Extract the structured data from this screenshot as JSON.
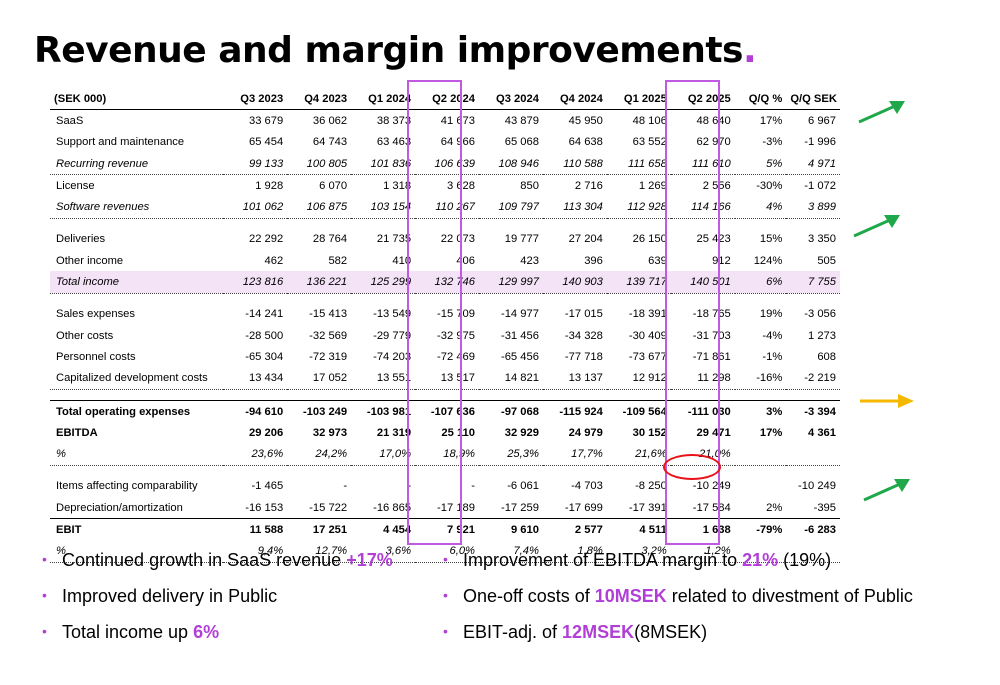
{
  "title": "Revenue and margin improvements",
  "title_dot": ".",
  "table": {
    "columns": [
      "(SEK 000)",
      "Q3 2023",
      "Q4 2023",
      "Q1 2024",
      "Q2 2024",
      "Q3 2024",
      "Q4 2024",
      "Q1 2025",
      "Q2 2025",
      "Q/Q %",
      "Q/Q SEK"
    ],
    "rows": [
      [
        "SaaS",
        "33 679",
        "36 062",
        "38 373",
        "41 673",
        "43 879",
        "45 950",
        "48 106",
        "48 640",
        "17%",
        "6 967"
      ],
      [
        "Support and maintenance",
        "65 454",
        "64 743",
        "63 463",
        "64 966",
        "65 068",
        "64 638",
        "63 552",
        "62 970",
        "-3%",
        "-1 996"
      ],
      [
        "Recurring revenue",
        "99 133",
        "100 805",
        "101 836",
        "106 639",
        "108 946",
        "110 588",
        "111 658",
        "111 610",
        "5%",
        "4 971"
      ],
      [
        "License",
        "1 928",
        "6 070",
        "1 318",
        "3 628",
        "850",
        "2 716",
        "1 269",
        "2 556",
        "-30%",
        "-1 072"
      ],
      [
        "Software revenues",
        "101 062",
        "106 875",
        "103 154",
        "110 267",
        "109 797",
        "113 304",
        "112 928",
        "114 166",
        "4%",
        "3 899"
      ],
      [
        "Deliveries",
        "22 292",
        "28 764",
        "21 735",
        "22 073",
        "19 777",
        "27 204",
        "26 150",
        "25 423",
        "15%",
        "3 350"
      ],
      [
        "Other income",
        "462",
        "582",
        "410",
        "406",
        "423",
        "396",
        "639",
        "912",
        "124%",
        "505"
      ],
      [
        "Total income",
        "123 816",
        "136 221",
        "125 299",
        "132 746",
        "129 997",
        "140 903",
        "139 717",
        "140 501",
        "6%",
        "7 755"
      ],
      [
        "Sales expenses",
        "-14 241",
        "-15 413",
        "-13 549",
        "-15 709",
        "-14 977",
        "-17 015",
        "-18 391",
        "-18 765",
        "19%",
        "-3 056"
      ],
      [
        "Other costs",
        "-28 500",
        "-32 569",
        "-29 779",
        "-32 975",
        "-31 456",
        "-34 328",
        "-30 409",
        "-31 703",
        "-4%",
        "1 273"
      ],
      [
        "Personnel costs",
        "-65 304",
        "-72 319",
        "-74 203",
        "-72 469",
        "-65 456",
        "-77 718",
        "-73 677",
        "-71 861",
        "-1%",
        "608"
      ],
      [
        "Capitalized development costs",
        "13 434",
        "17 052",
        "13 551",
        "13 517",
        "14 821",
        "13 137",
        "12 912",
        "11 298",
        "-16%",
        "-2 219"
      ],
      [
        "Total operating expenses",
        "-94 610",
        "-103 249",
        "-103 981",
        "-107 636",
        "-97 068",
        "-115 924",
        "-109 564",
        "-111 030",
        "3%",
        "-3 394"
      ],
      [
        "EBITDA",
        "29 206",
        "32 973",
        "21 319",
        "25 110",
        "32 929",
        "24 979",
        "30 152",
        "29 471",
        "17%",
        "4 361"
      ],
      [
        "%",
        "23,6%",
        "24,2%",
        "17,0%",
        "18,9%",
        "25,3%",
        "17,7%",
        "21,6%",
        "21,0%",
        "",
        ""
      ],
      [
        "Items affecting comparability",
        "-1 465",
        "-",
        "-",
        "-",
        "-6 061",
        "-4 703",
        "-8 250",
        "-10 249",
        "",
        "-10 249"
      ],
      [
        "Depreciation/amortization",
        "-16 153",
        "-15 722",
        "-16 865",
        "-17 189",
        "-17 259",
        "-17 699",
        "-17 391",
        "-17 584",
        "2%",
        "-395"
      ],
      [
        "EBIT",
        "11 588",
        "17 251",
        "4 454",
        "7 921",
        "9 610",
        "2 577",
        "4 511",
        "1 638",
        "-79%",
        "-6 283"
      ],
      [
        "%",
        "9,4%",
        "12,7%",
        "3,6%",
        "6,0%",
        "7,4%",
        "1,8%",
        "3,2%",
        "1,2%",
        "",
        ""
      ]
    ]
  },
  "arrows": [
    {
      "direction": "up",
      "color": "#1fa84a"
    },
    {
      "direction": "up",
      "color": "#1fa84a"
    },
    {
      "direction": "right",
      "color": "#f5b800"
    },
    {
      "direction": "up",
      "color": "#1fa84a"
    }
  ],
  "bullets_left": [
    {
      "text": "Continued growth in SaaS revenue ",
      "highlight": "+17%",
      "suffix": ""
    },
    {
      "text": "Improved delivery in Public",
      "highlight": "",
      "suffix": ""
    },
    {
      "text": "Total income up ",
      "highlight": "6%",
      "suffix": ""
    }
  ],
  "bullets_right": [
    {
      "text": "Improvement of EBITDA margin to ",
      "highlight": "21%",
      "suffix": " (19%)"
    },
    {
      "text": "One-off costs of ",
      "highlight": "10MSEK",
      "suffix": " related to divestment of Public"
    },
    {
      "text": "EBIT-adj. of ",
      "highlight": "12MSEK",
      "suffix": "(8MSEK)"
    }
  ],
  "bullet_glyph": "•",
  "colors": {
    "accent": "#b13fd6",
    "highlight_box": "#c05ae0",
    "total_row_bg": "#f4e2f7",
    "oval": "#e8131a"
  }
}
